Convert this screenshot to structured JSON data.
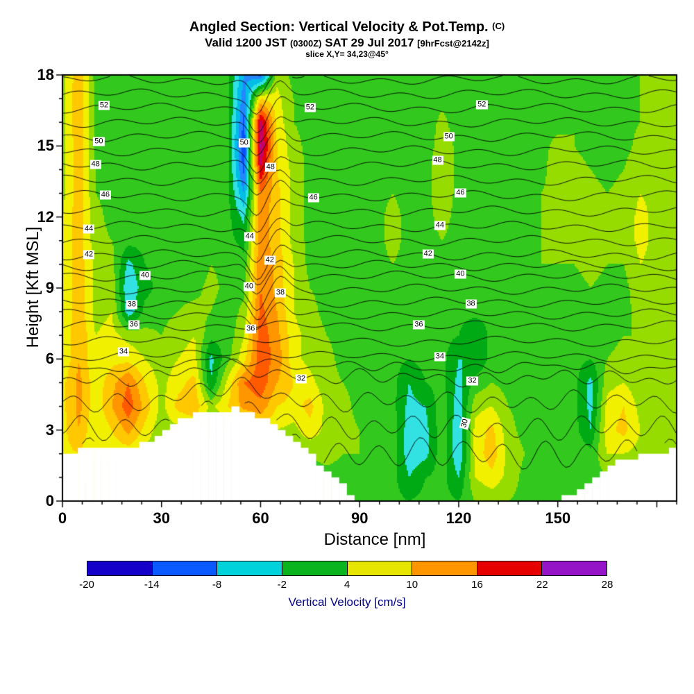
{
  "chart_data": {
    "type": "heatmap",
    "title": "Angled Section: Vertical Velocity & Pot.Temp.",
    "title_unit": "(C)",
    "valid_pre": "Valid 1200 JST ",
    "valid_zulu": "(0300Z)",
    "valid_date": " SAT 29 Jul 2017 ",
    "valid_fcst": "[9hrFcst@2142z]",
    "slice_info": "slice X,Y= 34,23@45°",
    "xlabel": "Distance [nm]",
    "ylabel": "Height [Kft MSL]",
    "x_ticks": [
      0,
      30,
      60,
      90,
      120,
      150
    ],
    "y_ticks": [
      0,
      3,
      6,
      9,
      12,
      15,
      18
    ],
    "x_minor_step": 6,
    "y_minor_step": 1,
    "x_range": [
      0,
      186
    ],
    "z_range": [
      0,
      18
    ],
    "colorbar": {
      "label": "Vertical Velocity [cm/s]",
      "ticks": [
        -20,
        -14,
        -8,
        -2,
        4,
        10,
        16,
        22,
        28
      ],
      "colors": [
        "#1400c8",
        "#0a5aff",
        "#00d2dc",
        "#0ab41e",
        "#e6e600",
        "#ff9600",
        "#e60000",
        "#9614c8"
      ]
    },
    "field_levels": [
      -20,
      -17,
      -14,
      -11,
      -8,
      -5,
      -2,
      1,
      4,
      7,
      10,
      13,
      16,
      19,
      22,
      25,
      28
    ],
    "field_colors": [
      "#1800b4",
      "#2814e6",
      "#0a50ff",
      "#2387ff",
      "#00bee6",
      "#32e1e1",
      "#00aa14",
      "#32c81e",
      "#96dc00",
      "#f0f000",
      "#ffc800",
      "#ff9600",
      "#ff5a00",
      "#e60000",
      "#c80064",
      "#9614c8"
    ],
    "field": {
      "units": "cm/s",
      "x_nm": [
        0,
        5,
        10,
        15,
        20,
        25,
        30,
        35,
        40,
        45,
        50,
        55,
        60,
        65,
        70,
        75,
        80,
        85,
        90,
        95,
        100,
        105,
        110,
        115,
        120,
        125,
        130,
        135,
        140,
        145,
        150,
        155,
        160,
        165,
        170,
        175,
        180,
        186
      ],
      "z_kft_min": 0,
      "z_kft_step": 1,
      "columns": [
        [
          8,
          8,
          9,
          9,
          9,
          9,
          7,
          7,
          7,
          7,
          7,
          7,
          7,
          6,
          6,
          6,
          6,
          6,
          6
        ],
        [
          7,
          8,
          10,
          13,
          14,
          14,
          13,
          13,
          12,
          12,
          12,
          12,
          12,
          12,
          12,
          12,
          13,
          13,
          12
        ],
        [
          5,
          6,
          7,
          7,
          8,
          8,
          7,
          7,
          6,
          6,
          6,
          5,
          5,
          4,
          4,
          3,
          3,
          3,
          3
        ],
        [
          4,
          6,
          8,
          10,
          13,
          12,
          9,
          8,
          7,
          6,
          5,
          4,
          3,
          3,
          3,
          3,
          3,
          3,
          3
        ],
        [
          3,
          5,
          8,
          14,
          18,
          16,
          9,
          6,
          -4,
          -5,
          -3,
          2,
          2,
          2,
          2,
          2,
          2,
          2,
          2
        ],
        [
          3,
          4,
          6,
          9,
          12,
          10,
          7,
          5,
          2,
          0,
          1,
          2,
          2,
          2,
          2,
          2,
          2,
          2,
          2
        ],
        [
          2,
          3,
          4,
          5,
          6,
          6,
          5,
          4,
          3,
          2,
          2,
          2,
          2,
          2,
          2,
          2,
          2,
          2,
          2
        ],
        [
          2,
          3,
          4,
          6,
          11,
          9,
          7,
          6,
          4,
          3,
          2,
          2,
          2,
          2,
          2,
          2,
          2,
          2,
          2
        ],
        [
          2,
          3,
          4,
          8,
          12,
          11,
          8,
          7,
          5,
          3,
          2,
          2,
          2,
          2,
          2,
          2,
          2,
          2,
          2
        ],
        [
          2,
          2,
          3,
          4,
          6,
          -2,
          -3,
          2,
          4,
          5,
          4,
          3,
          2,
          2,
          2,
          2,
          2,
          2,
          2
        ],
        [
          2,
          2,
          3,
          4,
          10,
          8,
          3,
          2,
          2,
          3,
          3,
          2,
          2,
          2,
          2,
          2,
          2,
          2,
          2
        ],
        [
          2,
          3,
          4,
          6,
          14,
          16,
          9,
          7,
          5,
          3,
          2,
          0,
          -3,
          -8,
          -12,
          -14,
          -12,
          -10,
          -8
        ],
        [
          3,
          4,
          6,
          9,
          15,
          18,
          18,
          18,
          17,
          16,
          16,
          15,
          15,
          16,
          22,
          26,
          24,
          10,
          -12
        ],
        [
          3,
          4,
          5,
          7,
          10,
          13,
          15,
          14,
          13,
          12,
          12,
          11,
          11,
          11,
          10,
          10,
          9,
          8,
          6
        ],
        [
          3,
          4,
          5,
          6,
          9,
          10,
          8,
          8,
          7,
          7,
          7,
          6,
          6,
          6,
          6,
          5,
          4,
          4,
          3
        ],
        [
          2,
          3,
          4,
          9,
          11,
          8,
          6,
          6,
          5,
          4,
          3,
          3,
          3,
          3,
          3,
          3,
          3,
          3,
          3
        ],
        [
          2,
          3,
          5,
          6,
          6,
          5,
          5,
          4,
          3,
          3,
          2,
          2,
          2,
          2,
          2,
          2,
          2,
          2,
          2
        ],
        [
          2,
          3,
          4,
          5,
          5,
          4,
          3,
          3,
          2,
          2,
          2,
          2,
          2,
          2,
          2,
          2,
          2,
          2,
          2
        ],
        [
          2,
          3,
          4,
          4,
          3,
          3,
          2,
          2,
          2,
          2,
          2,
          3,
          3,
          3,
          2,
          2,
          2,
          2,
          2
        ],
        [
          2,
          2,
          3,
          3,
          3,
          2,
          2,
          2,
          2,
          2,
          3,
          3,
          3,
          3,
          3,
          2,
          2,
          2,
          2
        ],
        [
          2,
          2,
          3,
          3,
          2,
          2,
          2,
          2,
          3,
          4,
          4,
          5,
          5,
          4,
          4,
          3,
          2,
          2,
          2
        ],
        [
          1,
          -2,
          -4,
          -4,
          -3,
          -2,
          1,
          2,
          2,
          3,
          3,
          3,
          3,
          3,
          2,
          2,
          2,
          2,
          2
        ],
        [
          2,
          1,
          -3,
          -3,
          -2,
          1,
          2,
          2,
          2,
          2,
          3,
          3,
          3,
          3,
          3,
          2,
          2,
          2,
          2
        ],
        [
          2,
          2,
          3,
          3,
          3,
          2,
          2,
          2,
          3,
          3,
          4,
          4,
          5,
          6,
          6,
          6,
          5,
          3,
          2
        ],
        [
          1,
          -2,
          -5,
          -5,
          -4,
          -3,
          -2,
          1,
          2,
          2,
          2,
          3,
          3,
          3,
          3,
          3,
          2,
          2,
          2
        ],
        [
          4,
          7,
          8,
          8,
          6,
          2,
          -2,
          -2,
          2,
          2,
          2,
          3,
          3,
          3,
          3,
          2,
          2,
          2,
          2
        ],
        [
          5,
          9,
          12,
          11,
          7,
          4,
          2,
          2,
          2,
          2,
          2,
          2,
          3,
          3,
          3,
          2,
          2,
          2,
          2
        ],
        [
          4,
          6,
          6,
          5,
          4,
          3,
          2,
          2,
          2,
          2,
          2,
          2,
          2,
          3,
          3,
          2,
          2,
          2,
          2
        ],
        [
          3,
          3,
          4,
          3,
          3,
          2,
          2,
          2,
          2,
          2,
          3,
          3,
          3,
          3,
          3,
          3,
          2,
          2,
          2
        ],
        [
          3,
          3,
          3,
          3,
          2,
          2,
          2,
          3,
          3,
          3,
          4,
          4,
          4,
          4,
          3,
          3,
          3,
          2,
          2
        ],
        [
          2,
          3,
          3,
          3,
          3,
          2,
          2,
          2,
          3,
          3,
          4,
          4,
          4,
          5,
          6,
          5,
          3,
          3,
          2
        ],
        [
          2,
          3,
          3,
          2,
          2,
          2,
          2,
          2,
          3,
          3,
          4,
          5,
          6,
          6,
          5,
          4,
          4,
          3,
          3
        ],
        [
          2,
          2,
          2,
          -2,
          -3,
          -3,
          1,
          2,
          3,
          4,
          5,
          5,
          5,
          5,
          4,
          3,
          3,
          3,
          3
        ],
        [
          3,
          4,
          7,
          9,
          8,
          6,
          4,
          3,
          3,
          3,
          4,
          4,
          4,
          4,
          3,
          3,
          3,
          3,
          3
        ],
        [
          3,
          5,
          7,
          11,
          10,
          7,
          5,
          4,
          3,
          3,
          4,
          5,
          5,
          5,
          4,
          3,
          3,
          3,
          3
        ],
        [
          3,
          4,
          6,
          7,
          6,
          5,
          4,
          4,
          5,
          6,
          7,
          8,
          8,
          7,
          6,
          5,
          4,
          4,
          4
        ],
        [
          3,
          4,
          5,
          6,
          5,
          4,
          4,
          4,
          4,
          5,
          6,
          6,
          6,
          6,
          5,
          4,
          4,
          4,
          4
        ],
        [
          3,
          4,
          5,
          6,
          6,
          5,
          4,
          4,
          4,
          5,
          6,
          7,
          7,
          6,
          5,
          4,
          4,
          4,
          4
        ]
      ]
    },
    "theta_contours": {
      "units": "C",
      "level_start": 29,
      "level_end": 54,
      "level_interval": 1,
      "height_anchors": [
        [
          28,
          1.0
        ],
        [
          29,
          2.0
        ],
        [
          30,
          3.1
        ],
        [
          31,
          4.2
        ],
        [
          32,
          5.2
        ],
        [
          33,
          5.65
        ],
        [
          34,
          6.1
        ],
        [
          35,
          6.75
        ],
        [
          36,
          7.4
        ],
        [
          37,
          7.9
        ],
        [
          38,
          8.4
        ],
        [
          39,
          8.95
        ],
        [
          40,
          9.5
        ],
        [
          41,
          9.95
        ],
        [
          42,
          10.4
        ],
        [
          43,
          11.0
        ],
        [
          44,
          11.6
        ],
        [
          45,
          12.25
        ],
        [
          46,
          12.9
        ],
        [
          47,
          13.55
        ],
        [
          48,
          14.2
        ],
        [
          49,
          14.8
        ],
        [
          50,
          15.4
        ],
        [
          51,
          16.0
        ],
        [
          52,
          16.6
        ],
        [
          53,
          17.2
        ],
        [
          54,
          17.8
        ]
      ],
      "labels": [
        {
          "v": 52,
          "x": 12.6
        },
        {
          "v": 52,
          "x": 75
        },
        {
          "v": 52,
          "x": 127
        },
        {
          "v": 50,
          "x": 11
        },
        {
          "v": 50,
          "x": 55
        },
        {
          "v": 50,
          "x": 117
        },
        {
          "v": 48,
          "x": 10
        },
        {
          "v": 48,
          "x": 63
        },
        {
          "v": 48,
          "x": 113.6
        },
        {
          "v": 46,
          "x": 13
        },
        {
          "v": 46,
          "x": 76
        },
        {
          "v": 46,
          "x": 120.5
        },
        {
          "v": 44,
          "x": 8
        },
        {
          "v": 44,
          "x": 56.7
        },
        {
          "v": 44,
          "x": 114.3
        },
        {
          "v": 42,
          "x": 8
        },
        {
          "v": 42,
          "x": 62.8
        },
        {
          "v": 42,
          "x": 110.7
        },
        {
          "v": 40,
          "x": 25
        },
        {
          "v": 40,
          "x": 56.5
        },
        {
          "v": 40,
          "x": 120.5
        },
        {
          "v": 38,
          "x": 21
        },
        {
          "v": 38,
          "x": 66
        },
        {
          "v": 38,
          "x": 123.7
        },
        {
          "v": 36,
          "x": 21.6
        },
        {
          "v": 36,
          "x": 57
        },
        {
          "v": 36,
          "x": 107.9
        },
        {
          "v": 34,
          "x": 18.5
        },
        {
          "v": 34,
          "x": 114.3
        },
        {
          "v": 32,
          "x": 72.3
        },
        {
          "v": 32,
          "x": 124.1
        },
        {
          "v": 30,
          "x": 122,
          "rot": -75
        }
      ]
    },
    "terrain_profile": [
      [
        0,
        1.9
      ],
      [
        4,
        2.1
      ],
      [
        8,
        2.2
      ],
      [
        14,
        2.2
      ],
      [
        18,
        2.3
      ],
      [
        24,
        2.4
      ],
      [
        27,
        2.4
      ],
      [
        30,
        2.9
      ],
      [
        33,
        3.2
      ],
      [
        36,
        3.4
      ],
      [
        39,
        3.6
      ],
      [
        43,
        3.75
      ],
      [
        48,
        3.85
      ],
      [
        53,
        3.9
      ],
      [
        56,
        3.8
      ],
      [
        59,
        3.6
      ],
      [
        62,
        3.4
      ],
      [
        65,
        3.1
      ],
      [
        68,
        2.8
      ],
      [
        71,
        2.5
      ],
      [
        74,
        2.1
      ],
      [
        77,
        1.7
      ],
      [
        80,
        1.3
      ],
      [
        83,
        0.9
      ],
      [
        86,
        0.5
      ],
      [
        89,
        0.15
      ],
      [
        91,
        0
      ],
      [
        150,
        0
      ],
      [
        153,
        0.2
      ],
      [
        156,
        0.5
      ],
      [
        159,
        0.8
      ],
      [
        162,
        1.1
      ],
      [
        165,
        1.4
      ],
      [
        168,
        1.6
      ],
      [
        171,
        1.8
      ],
      [
        177,
        2.0
      ],
      [
        182,
        2.1
      ],
      [
        186,
        2.2
      ]
    ]
  }
}
